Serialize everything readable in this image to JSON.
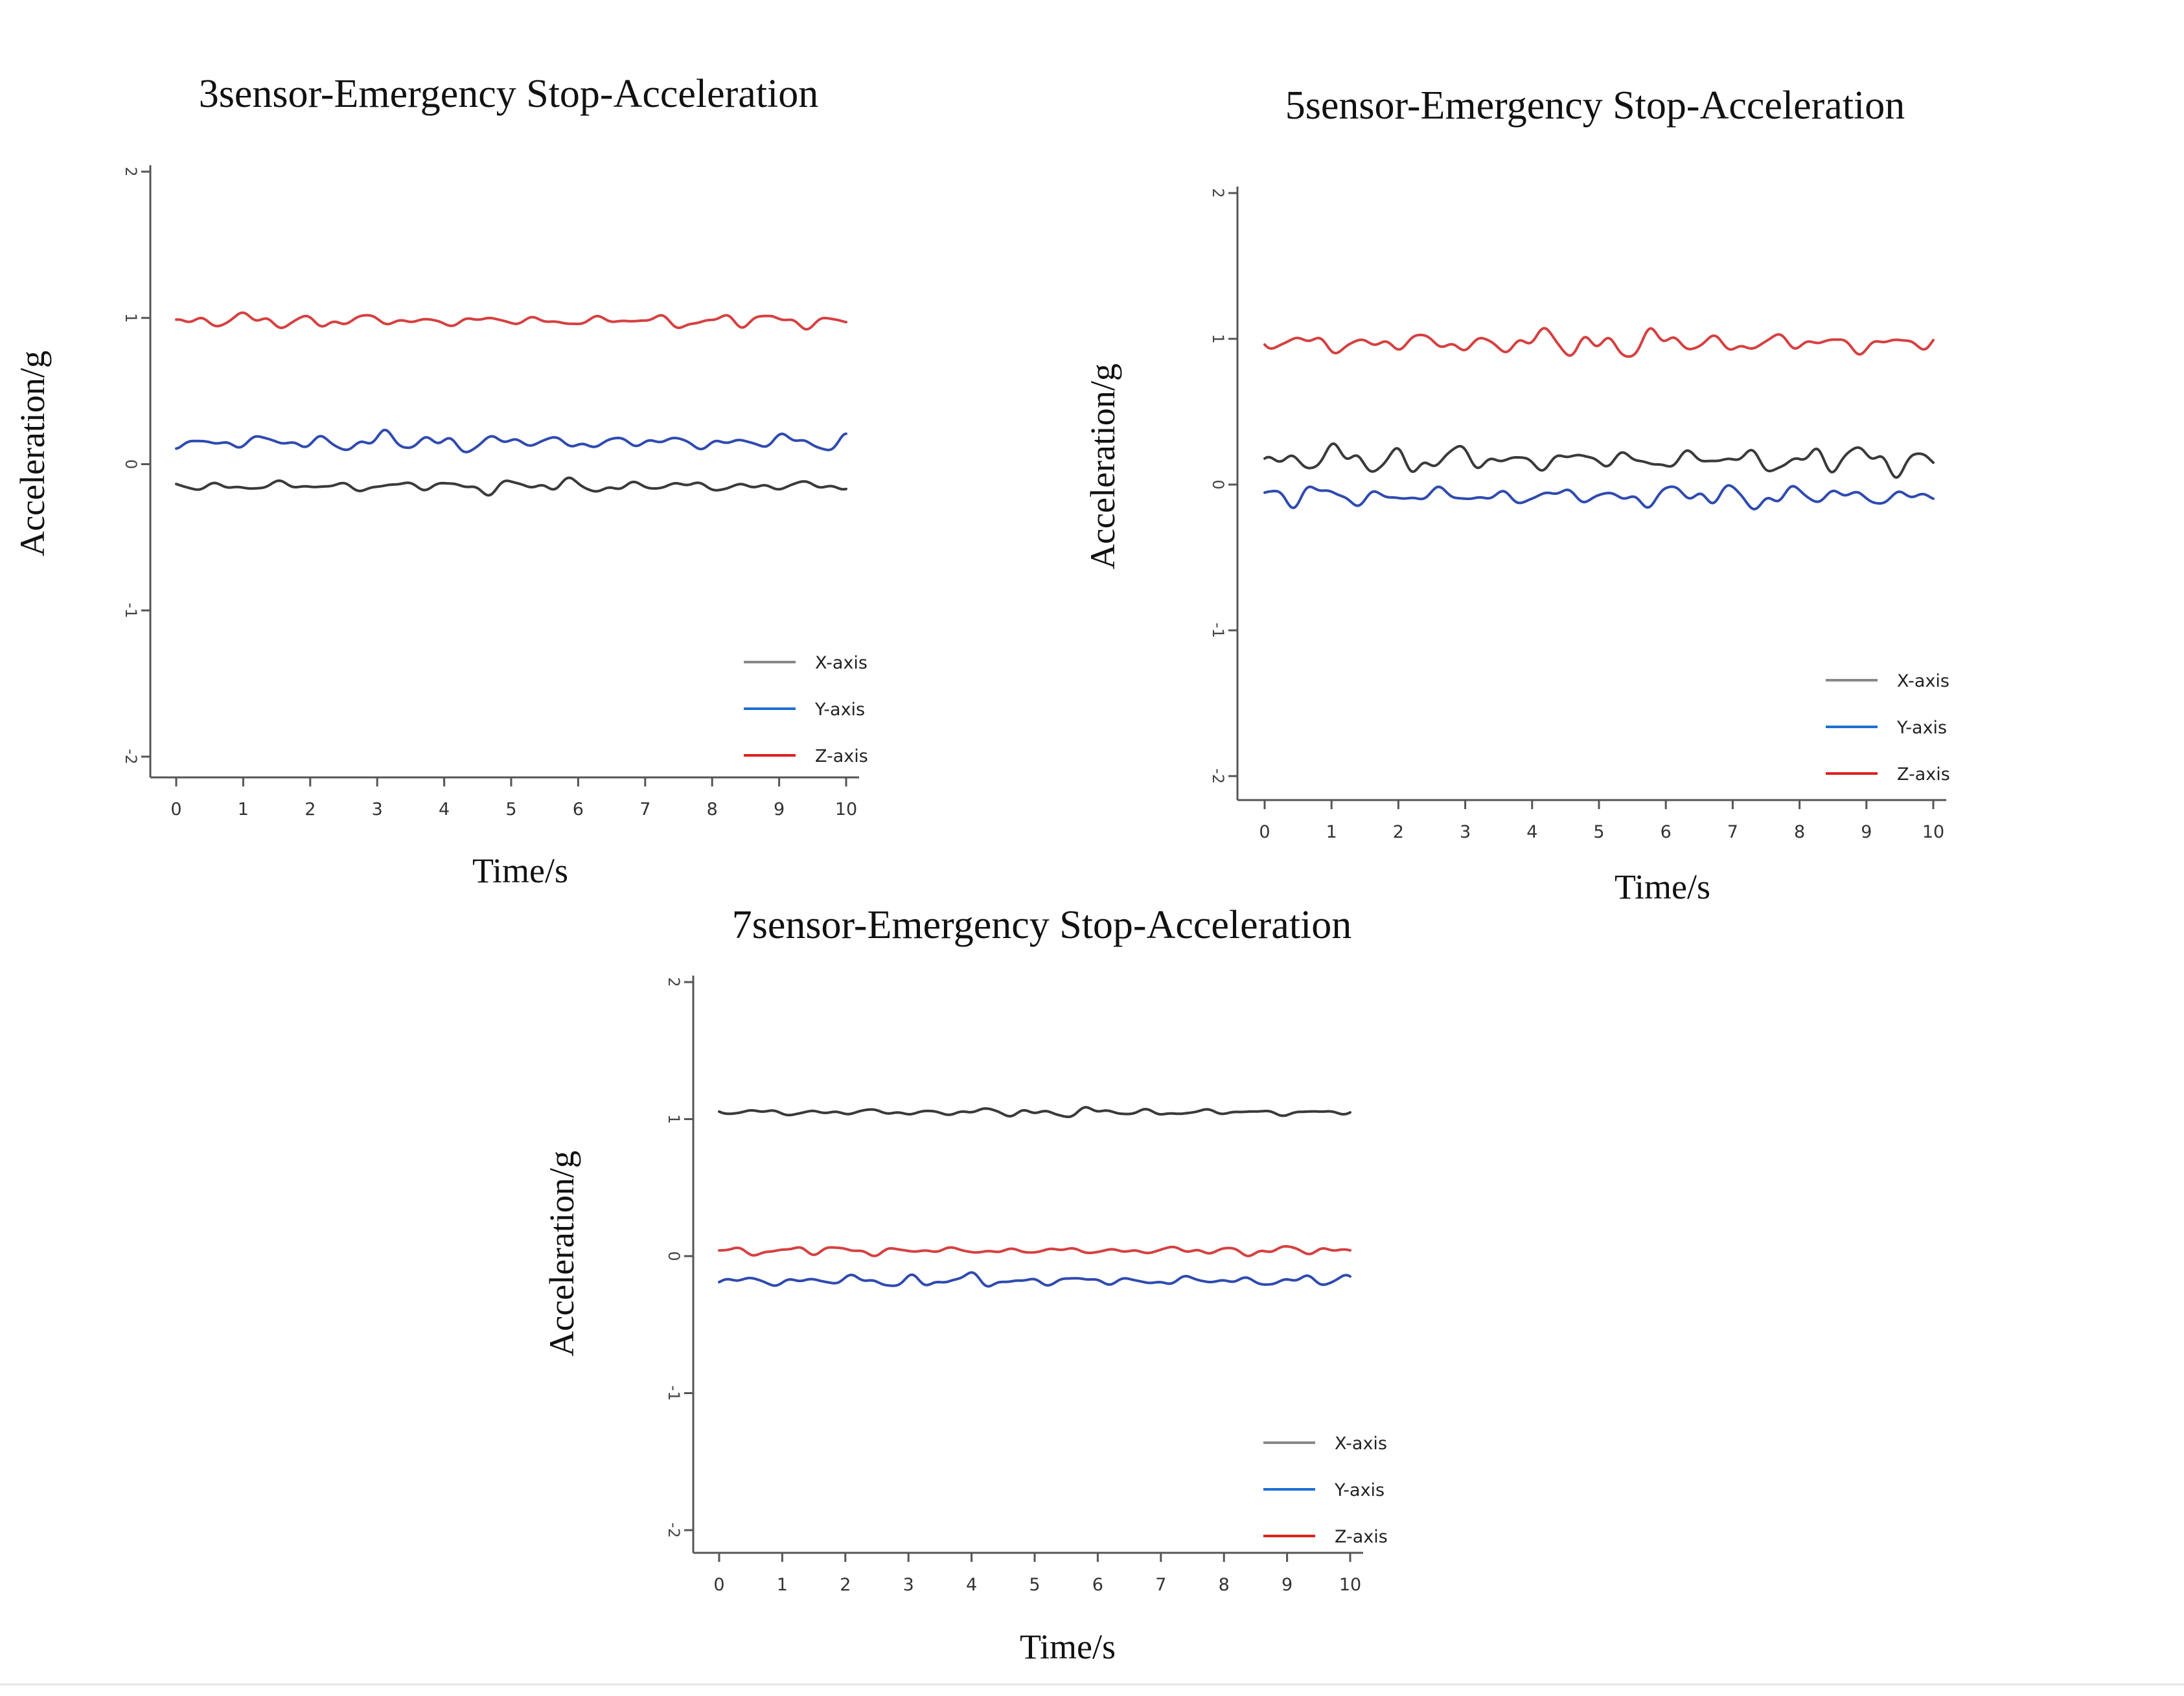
{
  "colors": {
    "x_axis": "#3a3a3a",
    "y_axis": "#2f4bb0",
    "z_axis": "#d64040",
    "legend_x": "#888888",
    "legend_y": "#1f6fd6",
    "legend_z": "#e02020"
  },
  "chart_data": [
    {
      "type": "line",
      "title": "3sensor-Emergency Stop-Acceleration",
      "xlabel": "Time/s",
      "ylabel": "Acceleration/g",
      "xlim": [
        0,
        10
      ],
      "ylim": [
        -2,
        2
      ],
      "xticks": [
        "0",
        "1",
        "2",
        "3",
        "4",
        "5",
        "6",
        "7",
        "8",
        "9",
        "10"
      ],
      "yticks": [
        "-2",
        "-1",
        "0",
        "1",
        "2"
      ],
      "legend_position": "bottom-right",
      "series": [
        {
          "name": "X-axis",
          "color_key": "x_axis",
          "legend_color_key": "legend_x",
          "baseline": -0.15,
          "amplitude": 0.03
        },
        {
          "name": "Y-axis",
          "color_key": "y_axis",
          "legend_color_key": "legend_y",
          "baseline": 0.15,
          "amplitude": 0.04
        },
        {
          "name": "Z-axis",
          "color_key": "z_axis",
          "legend_color_key": "legend_z",
          "baseline": 0.98,
          "amplitude": 0.03
        }
      ]
    },
    {
      "type": "line",
      "title": "5sensor-Emergency Stop-Acceleration",
      "xlabel": "Time/s",
      "ylabel": "Acceleration/g",
      "xlim": [
        0,
        10
      ],
      "ylim": [
        -2,
        2
      ],
      "xticks": [
        "0",
        "1",
        "2",
        "3",
        "4",
        "5",
        "6",
        "7",
        "8",
        "9",
        "10"
      ],
      "yticks": [
        "-2",
        "-1",
        "0",
        "1",
        "2"
      ],
      "legend_position": "bottom-right",
      "series": [
        {
          "name": "X-axis",
          "color_key": "x_axis",
          "legend_color_key": "legend_x",
          "baseline": 0.17,
          "amplitude": 0.06
        },
        {
          "name": "Y-axis",
          "color_key": "y_axis",
          "legend_color_key": "legend_y",
          "baseline": -0.08,
          "amplitude": 0.05
        },
        {
          "name": "Z-axis",
          "color_key": "z_axis",
          "legend_color_key": "legend_z",
          "baseline": 0.97,
          "amplitude": 0.06
        }
      ]
    },
    {
      "type": "line",
      "title": "7sensor-Emergency Stop-Acceleration",
      "xlabel": "Time/s",
      "ylabel": "Acceleration/g",
      "xlim": [
        0,
        10
      ],
      "ylim": [
        -2,
        2
      ],
      "xticks": [
        "0",
        "1",
        "2",
        "3",
        "4",
        "5",
        "6",
        "7",
        "8",
        "9",
        "10"
      ],
      "yticks": [
        "-2",
        "-1",
        "0",
        "1",
        "2"
      ],
      "legend_position": "bottom-right",
      "series": [
        {
          "name": "X-axis",
          "color_key": "x_axis",
          "legend_color_key": "legend_x",
          "baseline": 1.05,
          "amplitude": 0.02
        },
        {
          "name": "Y-axis",
          "color_key": "y_axis",
          "legend_color_key": "legend_y",
          "baseline": -0.18,
          "amplitude": 0.03
        },
        {
          "name": "Z-axis",
          "color_key": "z_axis",
          "legend_color_key": "legend_z",
          "baseline": 0.04,
          "amplitude": 0.02
        }
      ]
    }
  ]
}
